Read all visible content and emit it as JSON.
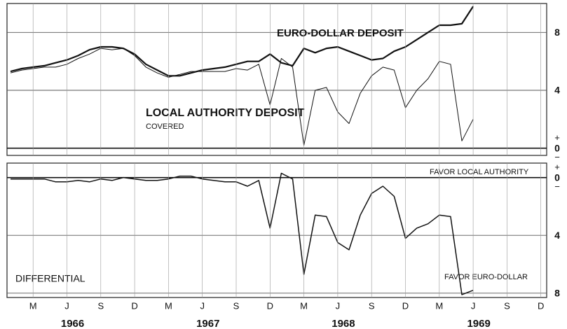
{
  "chart_data": [
    {
      "type": "line",
      "annotations": [
        "EURO-DOLLAR DEPOSIT",
        "LOCAL AUTHORITY DEPOSIT",
        "COVERED"
      ],
      "x": [
        "1966-01",
        "1966-02",
        "1966-03",
        "1966-04",
        "1966-05",
        "1966-06",
        "1966-07",
        "1966-08",
        "1966-09",
        "1966-10",
        "1966-11",
        "1966-12",
        "1967-01",
        "1967-02",
        "1967-03",
        "1967-04",
        "1967-05",
        "1967-06",
        "1967-07",
        "1967-08",
        "1967-09",
        "1967-10",
        "1967-11",
        "1967-12",
        "1968-01",
        "1968-02",
        "1968-03",
        "1968-04",
        "1968-05",
        "1968-06",
        "1968-07",
        "1968-08",
        "1968-09",
        "1968-10",
        "1968-11",
        "1968-12",
        "1969-01",
        "1969-02",
        "1969-03",
        "1969-04",
        "1969-05",
        "1969-06"
      ],
      "series": [
        {
          "color": "#111111",
          "values": [
            5.3,
            5.5,
            5.6,
            5.7,
            5.9,
            6.1,
            6.4,
            6.8,
            7.0,
            7.0,
            6.9,
            6.5,
            5.8,
            5.4,
            5.0,
            5.0,
            5.2,
            5.4,
            5.5,
            5.6,
            5.8,
            6.0,
            6.0,
            6.5,
            5.9,
            5.7,
            6.9,
            6.6,
            6.9,
            7.0,
            6.7,
            6.4,
            6.1,
            6.2,
            6.7,
            7.0,
            7.5,
            8.0,
            8.5,
            8.5,
            8.6,
            9.8
          ]
        },
        {
          "color": "#111111",
          "values": [
            5.2,
            5.4,
            5.5,
            5.6,
            5.6,
            5.8,
            6.2,
            6.5,
            6.9,
            6.8,
            6.9,
            6.4,
            5.6,
            5.2,
            4.9,
            5.1,
            5.3,
            5.3,
            5.3,
            5.3,
            5.5,
            5.4,
            5.8,
            3.0,
            6.2,
            5.6,
            0.2,
            4.0,
            4.2,
            2.5,
            1.7,
            3.8,
            5.0,
            5.6,
            5.4,
            2.8,
            4.0,
            4.8,
            6.0,
            5.8,
            0.5,
            2.0
          ]
        }
      ],
      "ylim": [
        -0.5,
        10
      ],
      "yticks": [
        0,
        4,
        8
      ],
      "zero_signs": [
        "+",
        "−"
      ],
      "grid": true
    },
    {
      "type": "line",
      "annotations": [
        "FAVOR LOCAL AUTHORITY",
        "DIFFERENTIAL",
        "FAVOR EURO-DOLLAR"
      ],
      "x": [
        "1966-01",
        "1966-02",
        "1966-03",
        "1966-04",
        "1966-05",
        "1966-06",
        "1966-07",
        "1966-08",
        "1966-09",
        "1966-10",
        "1966-11",
        "1966-12",
        "1967-01",
        "1967-02",
        "1967-03",
        "1967-04",
        "1967-05",
        "1967-06",
        "1967-07",
        "1967-08",
        "1967-09",
        "1967-10",
        "1967-11",
        "1967-12",
        "1968-01",
        "1968-02",
        "1968-03",
        "1968-04",
        "1968-05",
        "1968-06",
        "1968-07",
        "1968-08",
        "1968-09",
        "1968-10",
        "1968-11",
        "1968-12",
        "1969-01",
        "1969-02",
        "1969-03",
        "1969-04",
        "1969-05",
        "1969-06"
      ],
      "series": [
        {
          "color": "#111111",
          "values": [
            0.1,
            0.1,
            0.1,
            0.1,
            0.3,
            0.3,
            0.2,
            0.3,
            0.1,
            0.2,
            0.0,
            0.1,
            0.2,
            0.2,
            0.1,
            -0.1,
            -0.1,
            0.1,
            0.2,
            0.3,
            0.3,
            0.6,
            0.2,
            3.5,
            -0.3,
            0.1,
            6.7,
            2.6,
            2.7,
            4.5,
            5.0,
            2.6,
            1.1,
            0.6,
            1.3,
            4.2,
            3.5,
            3.2,
            2.6,
            2.7,
            8.1,
            7.8
          ]
        }
      ],
      "ylim": [
        -1,
        8.3
      ],
      "inverted": true,
      "yticks": [
        0,
        4,
        8
      ],
      "zero_signs": [
        "+",
        "−"
      ],
      "grid": true,
      "xticks": [
        {
          "value": "1966-03",
          "label": "M"
        },
        {
          "value": "1966-06",
          "label": "J"
        },
        {
          "value": "1966-09",
          "label": "S"
        },
        {
          "value": "1966-12",
          "label": "D"
        },
        {
          "value": "1967-03",
          "label": "M"
        },
        {
          "value": "1967-06",
          "label": "J"
        },
        {
          "value": "1967-09",
          "label": "S"
        },
        {
          "value": "1967-12",
          "label": "D"
        },
        {
          "value": "1968-03",
          "label": "M"
        },
        {
          "value": "1968-06",
          "label": "J"
        },
        {
          "value": "1968-09",
          "label": "S"
        },
        {
          "value": "1968-12",
          "label": "D"
        },
        {
          "value": "1969-03",
          "label": "M"
        },
        {
          "value": "1969-06",
          "label": "J"
        },
        {
          "value": "1969-09",
          "label": "S"
        },
        {
          "value": "1969-12",
          "label": "D"
        }
      ],
      "year_ticks": [
        1966,
        1967,
        1968,
        1969
      ]
    }
  ]
}
